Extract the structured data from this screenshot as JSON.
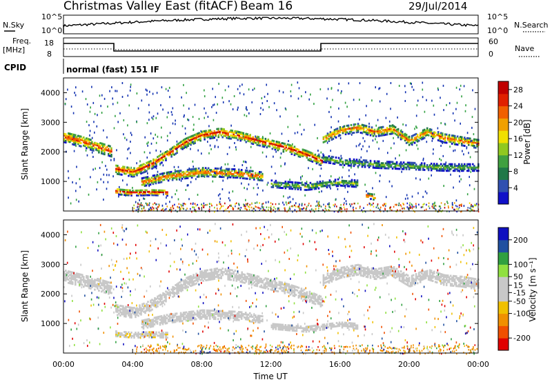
{
  "header": {
    "title": "Christmas Valley East (fitACF)",
    "beam": "Beam 16",
    "date": "29/Jul/2014"
  },
  "top_panels": {
    "nsky_label": "N.Sky",
    "nsearch_label": "N.Search",
    "noise_ticks": [
      "10^5",
      "10^0"
    ],
    "freq_label_line1": "Freq.",
    "freq_label_line2": "[MHz]",
    "freq_ticks": [
      "18",
      "8"
    ],
    "nave_label": "Nave",
    "nave_ticks": [
      "60",
      "0"
    ],
    "cpid_label": "CPID",
    "cpid_value": "normal (fast) 151 IF"
  },
  "colors": {
    "power_scale": [
      "#1010c8",
      "#3050b0",
      "#207848",
      "#40a040",
      "#90c820",
      "#f0e000",
      "#f0a000",
      "#f06000",
      "#e02000",
      "#c00000"
    ],
    "velocity_scale": [
      "#e00000",
      "#f05000",
      "#f09000",
      "#f0c000",
      "#c8c8c8",
      "#c8c8c8",
      "#90e040",
      "#30a040",
      "#2050a0",
      "#1010c0"
    ]
  },
  "chart_data": [
    {
      "type": "heatmap",
      "panel": "power",
      "xlabel": "",
      "ylabel": "Slant Range [km]",
      "yticks": [
        "1000",
        "2000",
        "3000",
        "4000"
      ],
      "ylim": [
        0,
        4500
      ],
      "colorbar_label": "Power [dB]",
      "colorbar_ticks": [
        "4",
        "8",
        "12",
        "16",
        "20",
        "24",
        "28"
      ],
      "colorbar_range": [
        0,
        30
      ],
      "bands": [
        {
          "name": "band-a",
          "t": [
            0,
            1,
            2,
            2.8
          ],
          "r": [
            2500,
            2350,
            2150,
            2000
          ],
          "width": 380,
          "peak_db": 26
        },
        {
          "name": "band-b",
          "t": [
            3,
            4,
            5,
            6,
            7,
            8,
            9,
            10,
            11,
            12,
            13,
            14,
            15
          ],
          "r": [
            1400,
            1300,
            1550,
            1900,
            2300,
            2550,
            2650,
            2550,
            2400,
            2250,
            2100,
            1900,
            1650
          ],
          "width": 320,
          "peak_db": 27
        },
        {
          "name": "band-c",
          "t": [
            3,
            4,
            5,
            6
          ],
          "r": [
            650,
            600,
            620,
            600
          ],
          "width": 200,
          "peak_db": 29
        },
        {
          "name": "band-d",
          "t": [
            4.5,
            6,
            8,
            10,
            11.5
          ],
          "r": [
            950,
            1150,
            1300,
            1250,
            1150
          ],
          "width": 280,
          "peak_db": 25
        },
        {
          "name": "band-e",
          "t": [
            15,
            16,
            17,
            18,
            19,
            20,
            21,
            22,
            23,
            24
          ],
          "r": [
            2400,
            2700,
            2800,
            2650,
            2750,
            2350,
            2650,
            2450,
            2350,
            2250
          ],
          "width": 300,
          "peak_db": 24
        },
        {
          "name": "band-f",
          "t": [
            15,
            16,
            18,
            20,
            22,
            24
          ],
          "r": [
            1750,
            1650,
            1550,
            1500,
            1450,
            1450
          ],
          "width": 220,
          "peak_db": 12
        },
        {
          "name": "band-g",
          "t": [
            12,
            14,
            16,
            17
          ],
          "r": [
            900,
            800,
            950,
            900
          ],
          "width": 220,
          "peak_db": 13
        },
        {
          "name": "band-h",
          "t": [
            17.5,
            18
          ],
          "r": [
            500,
            450
          ],
          "width": 180,
          "peak_db": 26
        }
      ]
    },
    {
      "type": "heatmap",
      "panel": "velocity",
      "xlabel": "Time UT",
      "ylabel": "Slant Range [km]",
      "yticks": [
        "1000",
        "2000",
        "3000",
        "4000"
      ],
      "ylim": [
        0,
        4500
      ],
      "colorbar_label": "Velocity [m s⁻¹]",
      "colorbar_ticks": [
        "-200",
        "-100",
        "-50",
        "-15",
        "15",
        "50",
        "100",
        "200"
      ],
      "colorbar_range": [
        -250,
        250
      ],
      "xticks": [
        "00:00",
        "04:00",
        "08:00",
        "12:00",
        "16:00",
        "20:00",
        "00:00"
      ],
      "xlim_hours": [
        0,
        24
      ],
      "bands": [
        {
          "name": "gs-band-a",
          "t": [
            0,
            1,
            2,
            2.8
          ],
          "r": [
            2600,
            2450,
            2300,
            2150
          ],
          "width": 420,
          "vel": 0
        },
        {
          "name": "gs-band-b",
          "t": [
            3,
            4,
            5,
            6,
            7,
            8,
            9,
            10,
            11,
            12,
            13,
            14,
            15
          ],
          "r": [
            1450,
            1350,
            1600,
            1950,
            2350,
            2600,
            2700,
            2600,
            2450,
            2300,
            2150,
            1950,
            1700
          ],
          "width": 360,
          "vel": 0
        },
        {
          "name": "gs-band-e",
          "t": [
            15,
            16,
            17,
            18,
            19,
            20,
            21,
            22,
            23,
            24
          ],
          "r": [
            2450,
            2700,
            2800,
            2650,
            2750,
            2400,
            2650,
            2450,
            2400,
            2300
          ],
          "width": 340,
          "vel": 0
        },
        {
          "name": "flow-band-d",
          "t": [
            4.5,
            6,
            8,
            10,
            11.5
          ],
          "r": [
            950,
            1150,
            1300,
            1250,
            1150
          ],
          "width": 300,
          "vel": 30
        },
        {
          "name": "flow-band-c",
          "t": [
            3,
            4,
            5,
            6
          ],
          "r": [
            650,
            600,
            620,
            600
          ],
          "width": 200,
          "vel": -40
        },
        {
          "name": "flow-band-g",
          "t": [
            12,
            14,
            16,
            17
          ],
          "r": [
            900,
            800,
            950,
            900
          ],
          "width": 200,
          "vel": 0
        }
      ]
    }
  ]
}
